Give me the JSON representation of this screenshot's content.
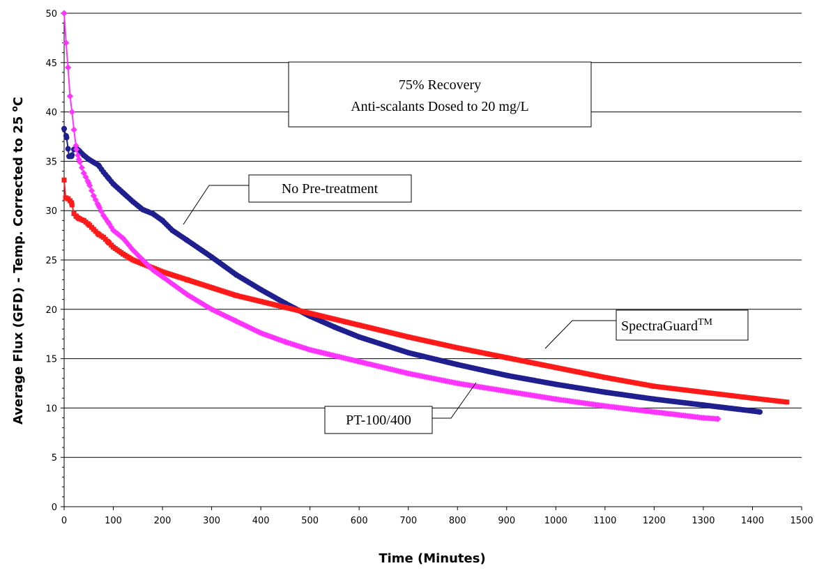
{
  "chart_data": {
    "type": "line",
    "xlabel": "Time (Minutes)",
    "ylabel": "Average Flux (GFD) - Temp. Corrected to 25 oC",
    "ylabel_parts": {
      "main": "Average Flux (GFD) - Temp. Corrected to 25 ",
      "superscript": "o",
      "unit": "C"
    },
    "xlim": [
      0,
      1500
    ],
    "ylim": [
      0,
      50
    ],
    "x_ticks": [
      "0",
      "100",
      "200",
      "300",
      "400",
      "500",
      "600",
      "700",
      "800",
      "900",
      "1000",
      "1100",
      "1200",
      "1300",
      "1400",
      "1500"
    ],
    "y_ticks": [
      "0",
      "5",
      "10",
      "15",
      "20",
      "25",
      "30",
      "35",
      "40",
      "45",
      "50"
    ],
    "grid": {
      "horizontal": true,
      "vertical": false
    },
    "legend": "none (callout labels)",
    "annotation_box": {
      "line1": "75% Recovery",
      "line2": "Anti-scalants Dosed to 20 mg/L"
    },
    "series": [
      {
        "name": "No Pre-treatment",
        "color": "#1f1f8f",
        "marker": "circle",
        "points": [
          [
            0,
            38.3
          ],
          [
            5,
            37.4
          ],
          [
            10,
            35.5
          ],
          [
            15,
            35.5
          ],
          [
            20,
            36.2
          ],
          [
            25,
            36.3
          ],
          [
            30,
            36.1
          ],
          [
            40,
            35.6
          ],
          [
            50,
            35.2
          ],
          [
            60,
            34.9
          ],
          [
            70,
            34.6
          ],
          [
            80,
            33.9
          ],
          [
            90,
            33.3
          ],
          [
            100,
            32.7
          ],
          [
            120,
            31.8
          ],
          [
            140,
            30.9
          ],
          [
            160,
            30.1
          ],
          [
            180,
            29.7
          ],
          [
            200,
            29.0
          ],
          [
            220,
            28.0
          ],
          [
            250,
            27.0
          ],
          [
            300,
            25.3
          ],
          [
            350,
            23.5
          ],
          [
            400,
            22.0
          ],
          [
            450,
            20.6
          ],
          [
            500,
            19.3
          ],
          [
            550,
            18.2
          ],
          [
            600,
            17.2
          ],
          [
            700,
            15.6
          ],
          [
            800,
            14.4
          ],
          [
            900,
            13.3
          ],
          [
            1000,
            12.4
          ],
          [
            1100,
            11.6
          ],
          [
            1200,
            10.9
          ],
          [
            1300,
            10.3
          ],
          [
            1400,
            9.7
          ],
          [
            1415,
            9.6
          ]
        ]
      },
      {
        "name": "SpectraGuard",
        "name_superscript": "TM",
        "color": "#ff1a1a",
        "marker": "square",
        "points": [
          [
            0,
            33.1
          ],
          [
            3,
            31.3
          ],
          [
            8,
            31.2
          ],
          [
            12,
            31.0
          ],
          [
            15,
            30.8
          ],
          [
            20,
            29.7
          ],
          [
            25,
            29.4
          ],
          [
            30,
            29.2
          ],
          [
            40,
            29.0
          ],
          [
            50,
            28.6
          ],
          [
            60,
            28.1
          ],
          [
            70,
            27.6
          ],
          [
            80,
            27.3
          ],
          [
            90,
            26.8
          ],
          [
            100,
            26.3
          ],
          [
            120,
            25.6
          ],
          [
            140,
            25.0
          ],
          [
            160,
            24.6
          ],
          [
            180,
            24.2
          ],
          [
            200,
            23.8
          ],
          [
            250,
            23.0
          ],
          [
            300,
            22.2
          ],
          [
            350,
            21.4
          ],
          [
            400,
            20.8
          ],
          [
            450,
            20.2
          ],
          [
            500,
            19.6
          ],
          [
            600,
            18.4
          ],
          [
            700,
            17.2
          ],
          [
            800,
            16.1
          ],
          [
            900,
            15.1
          ],
          [
            1000,
            14.1
          ],
          [
            1100,
            13.1
          ],
          [
            1200,
            12.2
          ],
          [
            1300,
            11.6
          ],
          [
            1400,
            11.0
          ],
          [
            1470,
            10.6
          ]
        ]
      },
      {
        "name": "PT-100/400",
        "color": "#ff33ff",
        "marker": "diamond",
        "points": [
          [
            0,
            50.0
          ],
          [
            4,
            47.0
          ],
          [
            8,
            44.5
          ],
          [
            12,
            41.6
          ],
          [
            16,
            40.0
          ],
          [
            20,
            38.2
          ],
          [
            25,
            36.2
          ],
          [
            30,
            35.2
          ],
          [
            40,
            33.8
          ],
          [
            50,
            32.8
          ],
          [
            60,
            31.5
          ],
          [
            70,
            30.5
          ],
          [
            80,
            29.5
          ],
          [
            90,
            28.8
          ],
          [
            100,
            28.0
          ],
          [
            110,
            27.6
          ],
          [
            120,
            27.2
          ],
          [
            140,
            26.0
          ],
          [
            160,
            25.0
          ],
          [
            180,
            24.0
          ],
          [
            200,
            23.3
          ],
          [
            250,
            21.5
          ],
          [
            300,
            20.0
          ],
          [
            350,
            18.8
          ],
          [
            400,
            17.6
          ],
          [
            450,
            16.7
          ],
          [
            500,
            15.9
          ],
          [
            600,
            14.7
          ],
          [
            700,
            13.5
          ],
          [
            800,
            12.5
          ],
          [
            900,
            11.7
          ],
          [
            1000,
            10.9
          ],
          [
            1100,
            10.2
          ],
          [
            1200,
            9.6
          ],
          [
            1300,
            9.0
          ],
          [
            1330,
            8.9
          ]
        ]
      }
    ],
    "callouts": [
      {
        "label": "No Pre-treatment"
      },
      {
        "label": "SpectraGuard",
        "superscript": "TM"
      },
      {
        "label": "PT-100/400"
      }
    ]
  }
}
